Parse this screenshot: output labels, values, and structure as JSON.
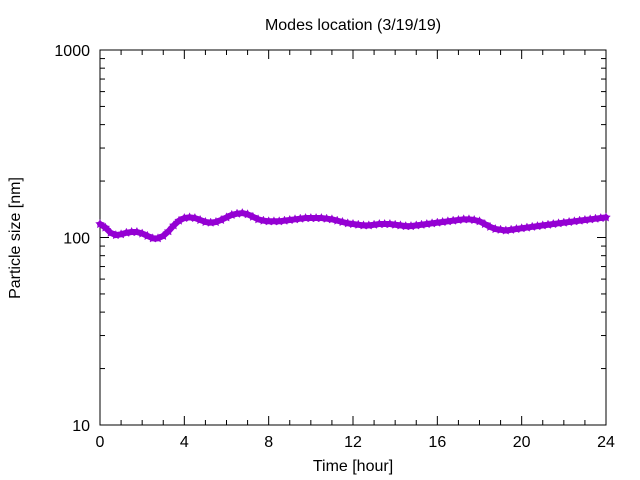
{
  "chart_data": {
    "type": "line",
    "title": "Modes location (3/19/19)",
    "xlabel": "Time [hour]",
    "ylabel": "Particle size [nm]",
    "x_ticks": [
      0,
      4,
      8,
      12,
      16,
      20,
      24
    ],
    "x_tick_labels": [
      "0",
      "4",
      "8",
      "12",
      "16",
      "20",
      "24"
    ],
    "y_ticks": [
      10,
      100,
      1000
    ],
    "y_tick_labels": [
      "10",
      "100",
      "1000"
    ],
    "y_scale": "log",
    "xlim": [
      0,
      24
    ],
    "ylim": [
      10,
      1000
    ],
    "grid": false,
    "legend": "none",
    "marker": "star",
    "color": "#9400d3",
    "series": [
      {
        "x": [
          0,
          0.25,
          0.5,
          0.75,
          1,
          1.25,
          1.5,
          1.75,
          2,
          2.25,
          2.5,
          2.75,
          3,
          3.25,
          3.5,
          3.75,
          4,
          4.25,
          4.5,
          4.75,
          5,
          5.25,
          5.5,
          5.75,
          6,
          6.25,
          6.5,
          6.75,
          7,
          7.25,
          7.5,
          7.75,
          8,
          8.25,
          8.5,
          8.75,
          9,
          9.25,
          9.5,
          9.75,
          10,
          10.25,
          10.5,
          10.75,
          11,
          11.25,
          11.5,
          11.75,
          12,
          12.25,
          12.5,
          12.75,
          13,
          13.25,
          13.5,
          13.75,
          14,
          14.25,
          14.5,
          14.75,
          15,
          15.25,
          15.5,
          15.75,
          16,
          16.25,
          16.5,
          16.75,
          17,
          17.25,
          17.5,
          17.75,
          18,
          18.25,
          18.5,
          18.75,
          19,
          19.25,
          19.5,
          19.75,
          20,
          20.25,
          20.5,
          20.75,
          21,
          21.25,
          21.5,
          21.75,
          22,
          22.25,
          22.5,
          22.75,
          23,
          23.25,
          23.5,
          23.75,
          24
        ],
        "values": [
          118,
          113,
          106,
          103,
          104,
          106,
          107,
          107,
          105,
          102,
          99,
          99,
          102,
          108,
          116,
          123,
          127,
          128,
          127,
          124,
          121,
          120,
          121,
          124,
          128,
          132,
          134,
          135,
          133,
          129,
          125,
          123,
          122,
          122,
          122,
          123,
          124,
          125,
          126,
          127,
          127,
          127,
          127,
          126,
          125,
          123,
          121,
          119,
          118,
          117,
          116,
          116,
          117,
          118,
          118,
          118,
          117,
          116,
          115,
          115,
          116,
          117,
          118,
          119,
          120,
          121,
          122,
          123,
          124,
          125,
          125,
          124,
          122,
          118,
          114,
          111,
          110,
          109,
          110,
          111,
          112,
          113,
          114,
          115,
          116,
          117,
          118,
          119,
          120,
          121,
          122,
          123,
          124,
          125,
          126,
          127,
          128
        ],
        "note_removed": true
      }
    ]
  }
}
